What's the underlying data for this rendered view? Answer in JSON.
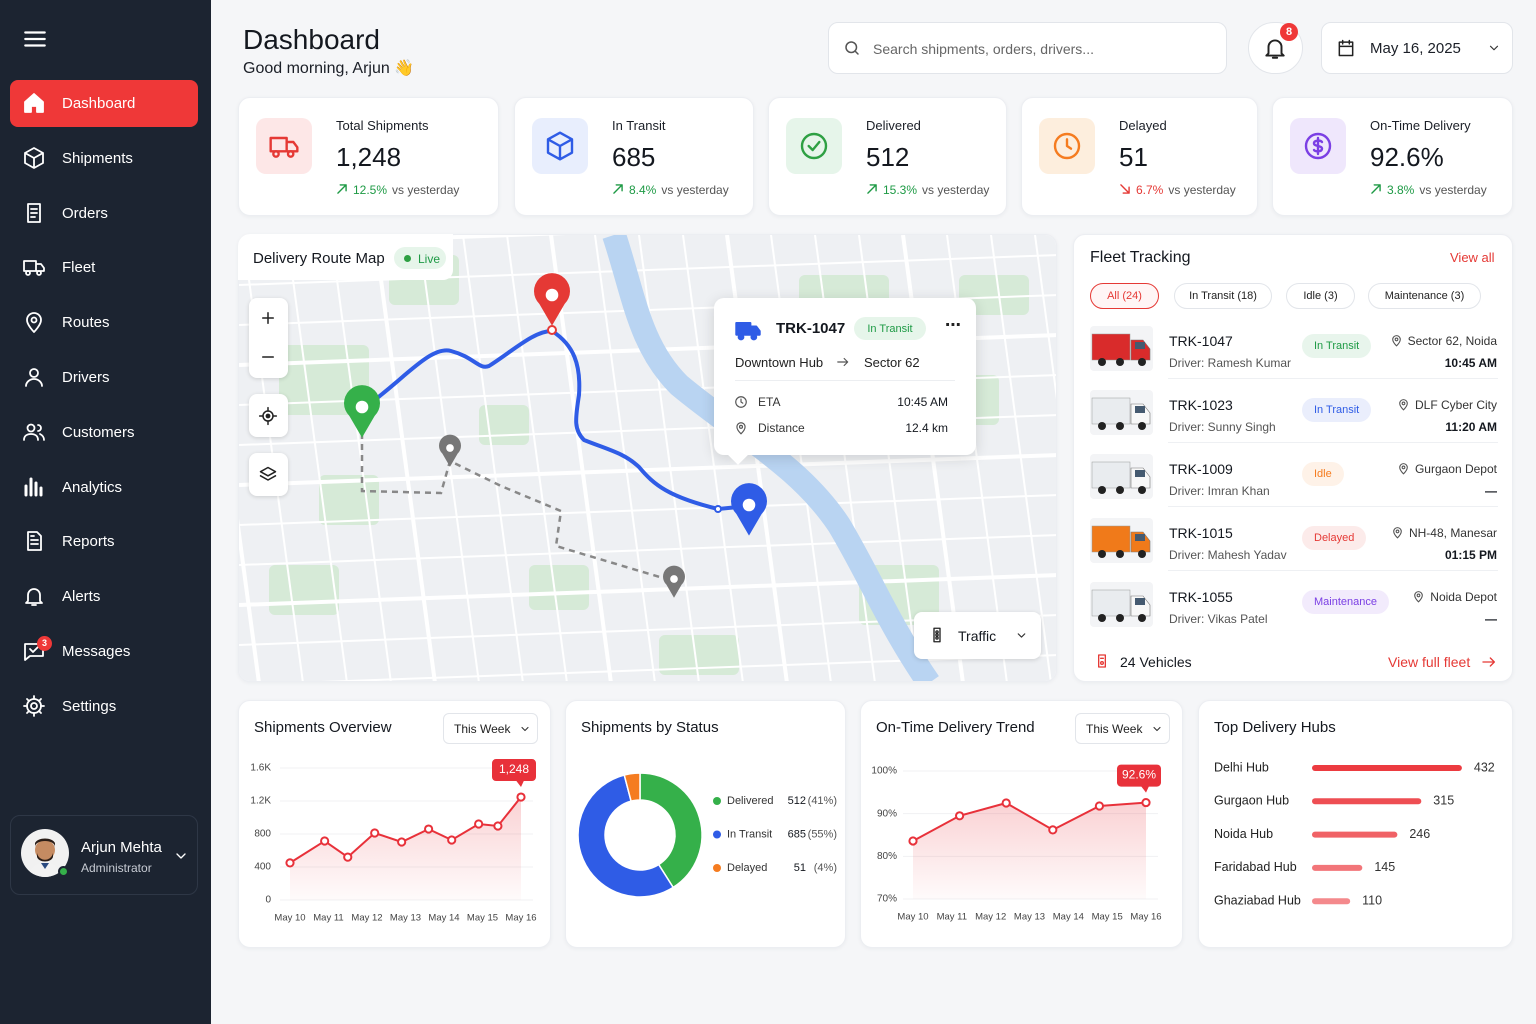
{
  "sidebar": {
    "nav": [
      "Dashboard",
      "Shipments",
      "Orders",
      "Fleet",
      "Routes",
      "Drivers",
      "Customers",
      "Analytics",
      "Reports",
      "Alerts",
      "Messages",
      "Settings"
    ],
    "messages_badge": "3",
    "user": {
      "name": "Arjun Mehta",
      "role": "Administrator"
    }
  },
  "header": {
    "title": "Dashboard",
    "greeting": "Good morning, Arjun 👋",
    "search_placeholder": "Search shipments, orders, drivers...",
    "notifications": "8",
    "date": "May 16, 2025"
  },
  "kpis": [
    {
      "label": "Total Shipments",
      "value": "1,248",
      "change": "12.5%",
      "note": "vs yesterday",
      "trend": "up"
    },
    {
      "label": "In Transit",
      "value": "685",
      "change": "8.4%",
      "note": "vs yesterday",
      "trend": "up"
    },
    {
      "label": "Delivered",
      "value": "512",
      "change": "15.3%",
      "note": "vs yesterday",
      "trend": "up"
    },
    {
      "label": "Delayed",
      "value": "51",
      "change": "6.7%",
      "note": "vs yesterday",
      "trend": "down"
    },
    {
      "label": "On-Time Delivery",
      "value": "92.6%",
      "change": "3.8%",
      "note": "vs yesterday",
      "trend": "up"
    }
  ],
  "map": {
    "title": "Delivery Route Map",
    "live": "Live",
    "popup": {
      "vehicle": "TRK-1047",
      "status": "In Transit",
      "from": "Downtown Hub",
      "to": "Sector 62",
      "eta_label": "ETA",
      "eta": "10:45 AM",
      "distance_label": "Distance",
      "distance": "12.4 km"
    },
    "traffic": "Traffic"
  },
  "fleet": {
    "title": "Fleet Tracking",
    "view_all": "View all",
    "filters": [
      "All (24)",
      "In Transit (18)",
      "Idle (3)",
      "Maintenance (3)"
    ],
    "vehicles": [
      {
        "id": "TRK-1047",
        "driver": "Driver: Ramesh Kumar",
        "status": "In Transit",
        "status_color": "#1e9a45",
        "location": "Sector 62, Noida",
        "time": "10:45 AM",
        "truck_color": "#d92b2b"
      },
      {
        "id": "TRK-1023",
        "driver": "Driver: Sunny Singh",
        "status": "In Transit",
        "status_color": "#2f5ce6",
        "location": "DLF Cyber City",
        "time": "11:20 AM",
        "truck_color": "#e9ecef"
      },
      {
        "id": "TRK-1009",
        "driver": "Driver: Imran Khan",
        "status": "Idle",
        "status_color": "#f57c20",
        "location": "Gurgaon Depot",
        "time": "—",
        "truck_color": "#e9ecef"
      },
      {
        "id": "TRK-1015",
        "driver": "Driver: Mahesh Yadav",
        "status": "Delayed",
        "status_color": "#e53935",
        "location": "NH-48, Manesar",
        "time": "01:15 PM",
        "truck_color": "#f07a1a"
      },
      {
        "id": "TRK-1055",
        "driver": "Driver: Vikas Patel",
        "status": "Maintenance",
        "status_color": "#7b3fe4",
        "location": "Noida Depot",
        "time": "—",
        "truck_color": "#e9ecef"
      }
    ],
    "total": "24 Vehicles",
    "view_full": "View full fleet"
  },
  "chart_data": [
    {
      "type": "line",
      "title": "Shipments Overview",
      "period": "This Week",
      "color": "#e8313a",
      "grid": true,
      "x": [
        10,
        10.9,
        11.5,
        12.2,
        12.9,
        13.6,
        14.2,
        14.9,
        15.4,
        16
      ],
      "values": [
        450,
        715,
        520,
        812,
        703,
        860,
        727,
        921,
        897,
        1248
      ],
      "value_labels": [
        null,
        null,
        null,
        null,
        null,
        null,
        null,
        null,
        null,
        "1,248"
      ],
      "xlim": [
        10,
        16
      ],
      "xticks": [
        {
          "value": 10,
          "label": "May 10"
        },
        {
          "value": 11,
          "label": "May 11"
        },
        {
          "value": 12,
          "label": "May 12"
        },
        {
          "value": 13,
          "label": "May 13"
        },
        {
          "value": 14,
          "label": "May 14"
        },
        {
          "value": 15,
          "label": "May 15"
        },
        {
          "value": 16,
          "label": "May 16"
        }
      ],
      "ylim": [
        0,
        1600
      ],
      "yticks": [
        0,
        400,
        800,
        {
          "value": 1200,
          "label": "1.2K"
        },
        {
          "value": 1600,
          "label": "1.6K"
        }
      ]
    },
    {
      "type": "donut",
      "title": "Shipments by Status",
      "categories": [
        "Delivered",
        "In Transit",
        "Delayed"
      ],
      "values": [
        512,
        685,
        51
      ],
      "share_labels": [
        "(41%)",
        "(55%)",
        "(4%)"
      ],
      "colors": [
        "#35b04a",
        "#2f5ce6",
        "#f57c20"
      ]
    },
    {
      "type": "line",
      "title": "On-Time Delivery Trend",
      "period": "This Week",
      "color": "#e8313a",
      "grid": true,
      "x": [
        10,
        11.2,
        12.4,
        13.6,
        14.8,
        16
      ],
      "values": [
        83.6,
        89.5,
        92.5,
        86.2,
        91.8,
        92.6
      ],
      "value_labels": [
        null,
        null,
        null,
        null,
        null,
        "92.6%"
      ],
      "xlim": [
        10,
        16
      ],
      "xticks": [
        {
          "value": 10,
          "label": "May 10"
        },
        {
          "value": 11,
          "label": "May 11"
        },
        {
          "value": 12,
          "label": "May 12"
        },
        {
          "value": 13,
          "label": "May 13"
        },
        {
          "value": 14,
          "label": "May 14"
        },
        {
          "value": 15,
          "label": "May 15"
        },
        {
          "value": 16,
          "label": "May 16"
        }
      ],
      "ylim": [
        70,
        100
      ],
      "yticks": [
        {
          "value": 70,
          "label": "70%"
        },
        {
          "value": 80,
          "label": "80%"
        },
        {
          "value": 90,
          "label": "90%"
        },
        {
          "value": 100,
          "label": "100%"
        }
      ]
    },
    {
      "type": "hbar",
      "title": "Top Delivery Hubs",
      "color": "#ec3b40",
      "categories": [
        "Delhi Hub",
        "Gurgaon Hub",
        "Noida Hub",
        "Faridabad Hub",
        "Ghaziabad Hub"
      ],
      "values": [
        432,
        315,
        246,
        145,
        110
      ]
    }
  ]
}
